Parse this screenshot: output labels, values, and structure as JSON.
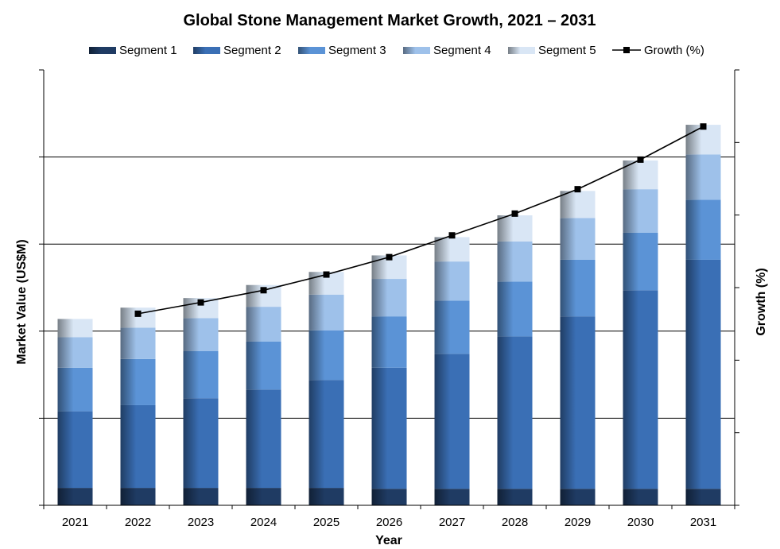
{
  "chart_data": {
    "type": "bar",
    "stacked": true,
    "title": "Global Stone Management Market Growth, 2021 – 2031",
    "xlabel": "Year",
    "ylabel": "Market Value (US$M)",
    "y2label": "Growth (%)",
    "categories": [
      "2021",
      "2022",
      "2023",
      "2024",
      "2025",
      "2026",
      "2027",
      "2028",
      "2029",
      "2030",
      "2031"
    ],
    "ylim": [
      0,
      5
    ],
    "y_ticks_labeled": false,
    "y2_ticks_labeled": false,
    "grid": true,
    "legend_position": "top",
    "series": [
      {
        "name": "Segment 1",
        "color": "#1f3b63",
        "values": [
          0.2,
          0.2,
          0.2,
          0.2,
          0.2,
          0.19,
          0.19,
          0.19,
          0.19,
          0.19,
          0.19
        ]
      },
      {
        "name": "Segment 2",
        "color": "#3a6fb5",
        "values": [
          0.88,
          0.95,
          1.03,
          1.13,
          1.24,
          1.39,
          1.55,
          1.75,
          1.98,
          2.28,
          2.63
        ]
      },
      {
        "name": "Segment 3",
        "color": "#5b93d6",
        "values": [
          0.5,
          0.53,
          0.54,
          0.55,
          0.57,
          0.59,
          0.61,
          0.63,
          0.65,
          0.66,
          0.69
        ]
      },
      {
        "name": "Segment 4",
        "color": "#9ec1ea",
        "values": [
          0.35,
          0.36,
          0.38,
          0.4,
          0.41,
          0.43,
          0.45,
          0.46,
          0.48,
          0.5,
          0.52
        ]
      },
      {
        "name": "Segment 5",
        "color": "#d9e6f5",
        "values": [
          0.21,
          0.23,
          0.23,
          0.25,
          0.26,
          0.27,
          0.28,
          0.3,
          0.31,
          0.33,
          0.34
        ]
      }
    ],
    "line_series": {
      "name": "Growth (%)",
      "axis": "y2",
      "color": "#000000",
      "x": [
        "2022",
        "2023",
        "2024",
        "2025",
        "2026",
        "2027",
        "2028",
        "2029",
        "2030",
        "2031"
      ],
      "values": [
        2.2,
        2.33,
        2.47,
        2.65,
        2.85,
        3.1,
        3.35,
        3.63,
        3.97,
        4.35
      ]
    }
  }
}
